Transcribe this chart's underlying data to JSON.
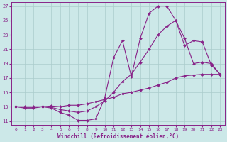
{
  "xlabel": "Windchill (Refroidissement éolien,°C)",
  "bg_color": "#cce8e8",
  "line_color": "#882288",
  "grid_color": "#aacccc",
  "xlim": [
    -0.5,
    23.5
  ],
  "ylim": [
    10.5,
    27.5
  ],
  "xticks": [
    0,
    1,
    2,
    3,
    4,
    5,
    6,
    7,
    8,
    9,
    10,
    11,
    12,
    13,
    14,
    15,
    16,
    17,
    18,
    19,
    20,
    21,
    22,
    23
  ],
  "yticks": [
    11,
    13,
    15,
    17,
    19,
    21,
    23,
    25,
    27
  ],
  "line1_x": [
    0,
    1,
    2,
    3,
    4,
    5,
    6,
    7,
    8,
    9,
    10,
    11,
    12,
    13,
    14,
    15,
    16,
    17,
    18,
    19,
    20,
    21,
    22,
    23
  ],
  "line1_y": [
    13,
    12.8,
    12.8,
    13.0,
    12.8,
    12.2,
    11.8,
    11.1,
    11.1,
    11.3,
    14.2,
    19.8,
    22.2,
    17.2,
    22.5,
    26.0,
    27.0,
    27.0,
    25.0,
    22.5,
    19.0,
    19.2,
    19.0,
    17.5
  ],
  "line2_x": [
    0,
    1,
    2,
    3,
    4,
    5,
    6,
    7,
    8,
    9,
    10,
    11,
    12,
    13,
    14,
    15,
    16,
    17,
    18,
    19,
    20,
    21,
    22,
    23
  ],
  "line2_y": [
    13,
    12.9,
    12.9,
    13.0,
    12.9,
    12.6,
    12.4,
    12.2,
    12.4,
    13.0,
    13.8,
    15.0,
    16.5,
    17.5,
    19.2,
    21.0,
    23.0,
    24.2,
    25.0,
    21.5,
    22.2,
    22.0,
    18.8,
    17.5
  ],
  "line3_x": [
    0,
    1,
    2,
    3,
    4,
    5,
    6,
    7,
    8,
    9,
    10,
    11,
    12,
    13,
    14,
    15,
    16,
    17,
    18,
    19,
    20,
    21,
    22,
    23
  ],
  "line3_y": [
    13,
    13.0,
    13.0,
    13.0,
    13.1,
    13.0,
    13.2,
    13.2,
    13.4,
    13.7,
    14.0,
    14.3,
    14.8,
    15.0,
    15.3,
    15.6,
    16.0,
    16.4,
    17.0,
    17.3,
    17.4,
    17.5,
    17.5,
    17.5
  ]
}
